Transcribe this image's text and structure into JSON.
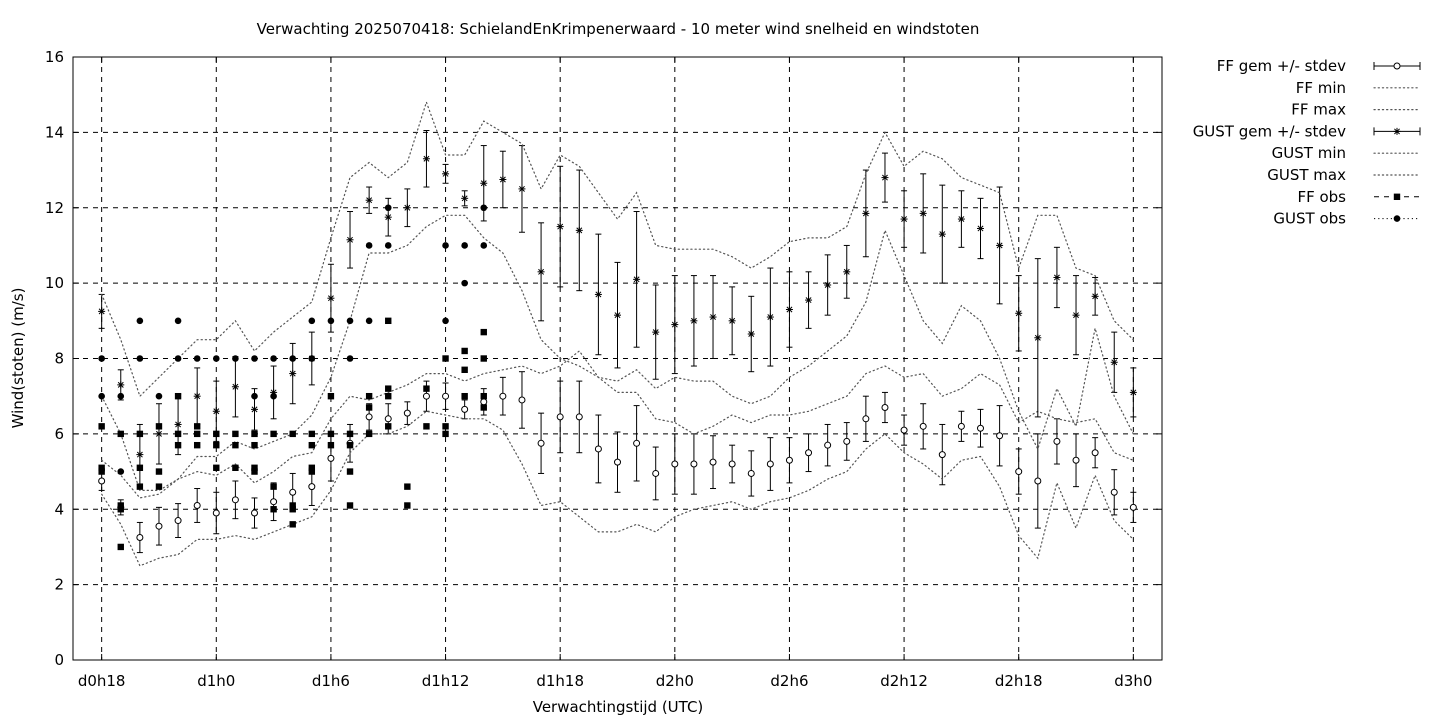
{
  "chart_data": {
    "type": "scatter",
    "title": "Verwachting 2025070418: SchielandEnKrimpenerwaard - 10 meter wind snelheid en windstoten",
    "xlabel": "Verwachtingstijd (UTC)",
    "ylabel": "Wind(stoten) (m/s)",
    "xlim": [
      -1.5,
      55.5
    ],
    "ylim": [
      0,
      16
    ],
    "grid": true,
    "legend_position": "outside-top-right",
    "x_ticks": [
      {
        "x": 0,
        "label": "d0h18"
      },
      {
        "x": 6,
        "label": "d1h0"
      },
      {
        "x": 12,
        "label": "d1h6"
      },
      {
        "x": 18,
        "label": "d1h12"
      },
      {
        "x": 24,
        "label": "d1h18"
      },
      {
        "x": 30,
        "label": "d2h0"
      },
      {
        "x": 36,
        "label": "d2h6"
      },
      {
        "x": 42,
        "label": "d2h12"
      },
      {
        "x": 48,
        "label": "d2h18"
      },
      {
        "x": 54,
        "label": "d3h0"
      }
    ],
    "y_ticks": [
      {
        "y": 0,
        "label": "0"
      },
      {
        "y": 2,
        "label": "2"
      },
      {
        "y": 4,
        "label": "4"
      },
      {
        "y": 6,
        "label": "6"
      },
      {
        "y": 8,
        "label": "8"
      },
      {
        "y": 10,
        "label": "10"
      },
      {
        "y": 12,
        "label": "12"
      },
      {
        "y": 14,
        "label": "14"
      },
      {
        "y": 16,
        "label": "16"
      }
    ],
    "x_hours": [
      0,
      1,
      2,
      3,
      4,
      5,
      6,
      7,
      8,
      9,
      10,
      11,
      12,
      13,
      14,
      15,
      16,
      17,
      18,
      19,
      20,
      21,
      22,
      23,
      24,
      25,
      26,
      27,
      28,
      29,
      30,
      31,
      32,
      33,
      34,
      35,
      36,
      37,
      38,
      39,
      40,
      41,
      42,
      43,
      44,
      45,
      46,
      47,
      48,
      49,
      50,
      51,
      52,
      53,
      54
    ],
    "series": [
      {
        "name": "FF gem +/- stdev",
        "kind": "errorbar",
        "marker": "open-circle",
        "y": [
          4.75,
          4.05,
          3.25,
          3.55,
          3.7,
          4.1,
          3.9,
          4.25,
          3.9,
          4.2,
          4.45,
          4.6,
          5.35,
          5.75,
          6.45,
          6.4,
          6.55,
          7.0,
          7.0,
          6.65,
          6.85,
          7.0,
          6.9,
          5.75,
          6.45,
          6.45,
          5.6,
          5.25,
          5.75,
          4.95,
          5.2,
          5.2,
          5.25,
          5.2,
          4.95,
          5.2,
          5.3,
          5.5,
          5.7,
          5.8,
          6.4,
          6.7,
          6.1,
          6.2,
          5.45,
          6.2,
          6.15,
          5.95,
          5.0,
          4.75,
          5.8,
          5.3,
          5.5,
          4.45,
          4.05
        ],
        "err": [
          0.25,
          0.2,
          0.4,
          0.5,
          0.45,
          0.45,
          0.55,
          0.5,
          0.4,
          0.5,
          0.5,
          0.5,
          0.6,
          0.5,
          0.35,
          0.4,
          0.3,
          0.4,
          0.35,
          0.25,
          0.35,
          0.5,
          0.75,
          0.8,
          0.95,
          0.95,
          0.9,
          0.8,
          1.0,
          0.7,
          0.8,
          0.8,
          0.7,
          0.5,
          0.6,
          0.7,
          0.6,
          0.5,
          0.55,
          0.5,
          0.6,
          0.4,
          0.4,
          0.6,
          0.8,
          0.4,
          0.5,
          0.8,
          0.6,
          1.25,
          0.6,
          0.7,
          0.4,
          0.6,
          0.4
        ]
      },
      {
        "name": "FF min",
        "kind": "line",
        "style": "dotted",
        "y": [
          4.4,
          3.6,
          2.5,
          2.7,
          2.8,
          3.2,
          3.2,
          3.3,
          3.2,
          3.4,
          3.6,
          3.8,
          4.5,
          5.5,
          6.0,
          6.0,
          6.2,
          6.6,
          6.5,
          6.4,
          6.4,
          6.1,
          5.2,
          4.1,
          4.2,
          3.8,
          3.4,
          3.4,
          3.6,
          3.4,
          3.8,
          4.0,
          4.1,
          4.2,
          4.0,
          4.2,
          4.3,
          4.5,
          4.8,
          5.0,
          5.6,
          6.0,
          5.5,
          5.2,
          4.8,
          5.3,
          5.4,
          4.6,
          3.3,
          2.7,
          4.7,
          3.5,
          4.9,
          3.7,
          3.2
        ]
      },
      {
        "name": "FF max",
        "kind": "line",
        "style": "dotted",
        "y": [
          5.3,
          4.9,
          4.3,
          4.4,
          4.8,
          5.0,
          4.9,
          5.2,
          4.7,
          5.0,
          5.4,
          5.5,
          6.4,
          7.0,
          6.9,
          7.1,
          7.3,
          7.6,
          7.6,
          7.4,
          7.6,
          7.7,
          7.8,
          7.6,
          7.8,
          8.2,
          7.5,
          7.1,
          7.1,
          6.4,
          6.3,
          6.0,
          6.2,
          6.5,
          6.3,
          6.5,
          6.5,
          6.6,
          6.8,
          7.0,
          7.6,
          7.8,
          7.5,
          7.6,
          7.0,
          7.2,
          7.6,
          7.3,
          6.3,
          6.6,
          6.4,
          6.3,
          6.4,
          5.5,
          5.3
        ]
      },
      {
        "name": "GUST gem +/- stdev",
        "kind": "errorbar",
        "marker": "star",
        "y": [
          9.25,
          7.3,
          5.45,
          6.0,
          6.25,
          7.0,
          6.6,
          7.25,
          6.65,
          7.1,
          7.6,
          8.0,
          9.6,
          11.15,
          12.2,
          11.75,
          12.0,
          13.3,
          12.9,
          12.25,
          12.65,
          12.75,
          12.5,
          10.3,
          11.5,
          11.4,
          9.7,
          9.15,
          10.1,
          8.7,
          8.9,
          9.0,
          9.1,
          9.0,
          8.65,
          9.1,
          9.3,
          9.55,
          9.95,
          10.3,
          11.85,
          12.8,
          11.7,
          11.85,
          11.3,
          11.7,
          11.45,
          11.0,
          9.2,
          8.55,
          10.15,
          9.15,
          9.65,
          7.9,
          7.1
        ],
        "err": [
          0.45,
          0.4,
          0.8,
          0.8,
          0.8,
          0.75,
          0.8,
          0.8,
          0.55,
          0.7,
          0.8,
          0.7,
          0.9,
          0.75,
          0.35,
          0.5,
          0.5,
          0.75,
          0.25,
          0.2,
          1.0,
          0.75,
          1.15,
          1.3,
          1.6,
          1.6,
          1.6,
          1.4,
          1.8,
          1.25,
          1.3,
          1.2,
          1.1,
          0.9,
          1.0,
          1.3,
          1.0,
          0.75,
          0.8,
          0.7,
          1.15,
          0.65,
          0.75,
          1.05,
          1.3,
          0.75,
          0.8,
          1.55,
          1.0,
          2.1,
          0.8,
          1.05,
          0.5,
          0.8,
          0.65
        ]
      },
      {
        "name": "GUST min",
        "kind": "line",
        "style": "dotted",
        "y": [
          7.0,
          6.0,
          4.5,
          4.5,
          4.8,
          5.4,
          5.4,
          5.8,
          5.6,
          5.8,
          6.0,
          6.5,
          7.5,
          9.0,
          10.8,
          10.8,
          11.0,
          11.5,
          11.8,
          11.8,
          11.2,
          10.8,
          9.8,
          8.5,
          8.0,
          7.8,
          7.5,
          7.4,
          7.7,
          7.2,
          7.5,
          7.4,
          7.4,
          7.0,
          6.8,
          7.0,
          7.5,
          7.8,
          8.2,
          8.6,
          9.5,
          11.4,
          10.2,
          9.0,
          8.4,
          9.4,
          9.0,
          8.0,
          6.6,
          5.6,
          7.2,
          6.2,
          8.8,
          7.0,
          6.0
        ]
      },
      {
        "name": "GUST max",
        "kind": "line",
        "style": "dotted",
        "y": [
          9.7,
          8.5,
          7.0,
          7.5,
          8.0,
          8.5,
          8.5,
          9.0,
          8.2,
          8.7,
          9.1,
          9.5,
          11.2,
          12.8,
          13.2,
          12.8,
          13.2,
          14.8,
          13.4,
          13.4,
          14.3,
          14.0,
          13.7,
          12.5,
          13.4,
          13.1,
          12.4,
          11.7,
          12.4,
          11.0,
          10.9,
          10.9,
          10.9,
          10.7,
          10.4,
          10.7,
          11.1,
          11.2,
          11.2,
          11.5,
          12.9,
          14.0,
          13.1,
          13.5,
          13.3,
          12.8,
          12.6,
          12.4,
          10.4,
          11.8,
          11.8,
          10.4,
          10.2,
          9.0,
          8.5
        ]
      },
      {
        "name": "FF obs",
        "kind": "points",
        "marker": "filled-square",
        "points": [
          [
            0,
            6.2
          ],
          [
            0,
            5.1
          ],
          [
            0,
            5.0
          ],
          [
            1,
            6.0
          ],
          [
            1,
            4.1
          ],
          [
            1,
            4.0
          ],
          [
            1,
            3.0
          ],
          [
            2,
            6.0
          ],
          [
            2,
            5.1
          ],
          [
            2,
            4.6
          ],
          [
            3,
            6.2
          ],
          [
            3,
            5.0
          ],
          [
            3,
            4.6
          ],
          [
            4,
            7.0
          ],
          [
            4,
            6.0
          ],
          [
            4,
            5.7
          ],
          [
            5,
            6.2
          ],
          [
            5,
            6.0
          ],
          [
            5,
            5.7
          ],
          [
            6,
            6.0
          ],
          [
            6,
            5.7
          ],
          [
            6,
            5.1
          ],
          [
            7,
            6.0
          ],
          [
            7,
            5.7
          ],
          [
            7,
            5.1
          ],
          [
            8,
            6.0
          ],
          [
            8,
            5.7
          ],
          [
            8,
            5.1
          ],
          [
            8,
            5.0
          ],
          [
            9,
            6.0
          ],
          [
            9,
            4.6
          ],
          [
            9,
            4.0
          ],
          [
            10,
            6.0
          ],
          [
            10,
            4.1
          ],
          [
            10,
            4.0
          ],
          [
            10,
            3.6
          ],
          [
            11,
            6.0
          ],
          [
            11,
            5.7
          ],
          [
            11,
            5.1
          ],
          [
            11,
            5.0
          ],
          [
            12,
            7.0
          ],
          [
            12,
            6.0
          ],
          [
            12,
            5.7
          ],
          [
            13,
            6.0
          ],
          [
            13,
            5.7
          ],
          [
            13,
            5.0
          ],
          [
            13,
            4.1
          ],
          [
            14,
            7.0
          ],
          [
            14,
            6.7
          ],
          [
            14,
            6.0
          ],
          [
            15,
            9.0
          ],
          [
            15,
            7.2
          ],
          [
            15,
            7.0
          ],
          [
            15,
            6.2
          ],
          [
            16,
            4.6
          ],
          [
            16,
            4.1
          ],
          [
            17,
            7.2
          ],
          [
            17,
            6.2
          ],
          [
            18,
            8.0
          ],
          [
            18,
            6.2
          ],
          [
            18,
            6.0
          ],
          [
            19,
            8.2
          ],
          [
            19,
            7.7
          ],
          [
            19,
            7.0
          ],
          [
            20,
            8.7
          ],
          [
            20,
            8.0
          ],
          [
            20,
            7.0
          ],
          [
            20,
            6.7
          ]
        ]
      },
      {
        "name": "GUST obs",
        "kind": "points",
        "marker": "filled-circle",
        "points": [
          [
            0,
            8.0
          ],
          [
            0,
            7.0
          ],
          [
            1,
            7.0
          ],
          [
            1,
            5.0
          ],
          [
            2,
            9.0
          ],
          [
            2,
            8.0
          ],
          [
            3,
            7.0
          ],
          [
            4,
            9.0
          ],
          [
            4,
            8.0
          ],
          [
            5,
            8.0
          ],
          [
            6,
            8.0
          ],
          [
            7,
            8.0
          ],
          [
            8,
            8.0
          ],
          [
            8,
            7.0
          ],
          [
            9,
            8.0
          ],
          [
            9,
            7.0
          ],
          [
            10,
            8.0
          ],
          [
            11,
            9.0
          ],
          [
            11,
            8.0
          ],
          [
            12,
            9.0
          ],
          [
            13,
            9.0
          ],
          [
            13,
            8.0
          ],
          [
            14,
            11.0
          ],
          [
            14,
            9.0
          ],
          [
            15,
            12.0
          ],
          [
            15,
            11.0
          ],
          [
            18,
            11.0
          ],
          [
            18,
            9.0
          ],
          [
            19,
            11.0
          ],
          [
            19,
            10.0
          ],
          [
            20,
            12.0
          ],
          [
            20,
            11.0
          ]
        ]
      }
    ]
  }
}
